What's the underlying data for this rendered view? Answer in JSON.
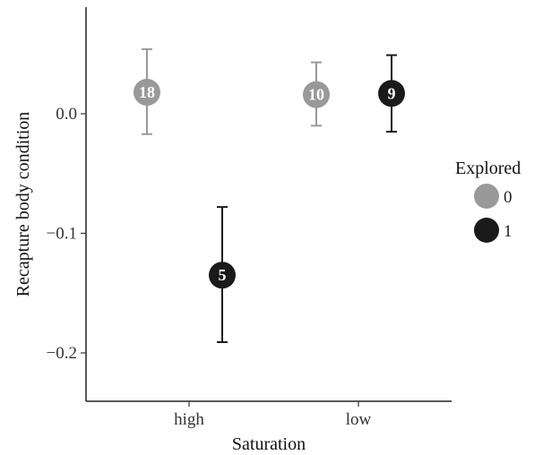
{
  "chart_data": {
    "type": "scatter",
    "title": "",
    "xlabel": "Saturation",
    "ylabel": "Recapture body condition",
    "categories": [
      "high",
      "low"
    ],
    "ylim": [
      -0.24,
      0.09
    ],
    "yticks": [
      0.0,
      -0.1,
      -0.2
    ],
    "ytick_labels": [
      "0.0",
      "−0.1",
      "−0.2"
    ],
    "grid": false,
    "legend": {
      "title": "Explored",
      "position": "right",
      "entries": [
        "0",
        "1"
      ]
    },
    "series": [
      {
        "name": "0",
        "color": "#999999",
        "points": [
          {
            "x": "high",
            "y": 0.018,
            "lower": -0.017,
            "upper": 0.054,
            "n": "18"
          },
          {
            "x": "low",
            "y": 0.016,
            "lower": -0.01,
            "upper": 0.043,
            "n": "10"
          }
        ]
      },
      {
        "name": "1",
        "color": "#1a1a1a",
        "points": [
          {
            "x": "high",
            "y": -0.135,
            "lower": -0.191,
            "upper": -0.078,
            "n": "5"
          },
          {
            "x": "low",
            "y": 0.017,
            "lower": -0.015,
            "upper": 0.049,
            "n": "9"
          }
        ]
      }
    ]
  }
}
